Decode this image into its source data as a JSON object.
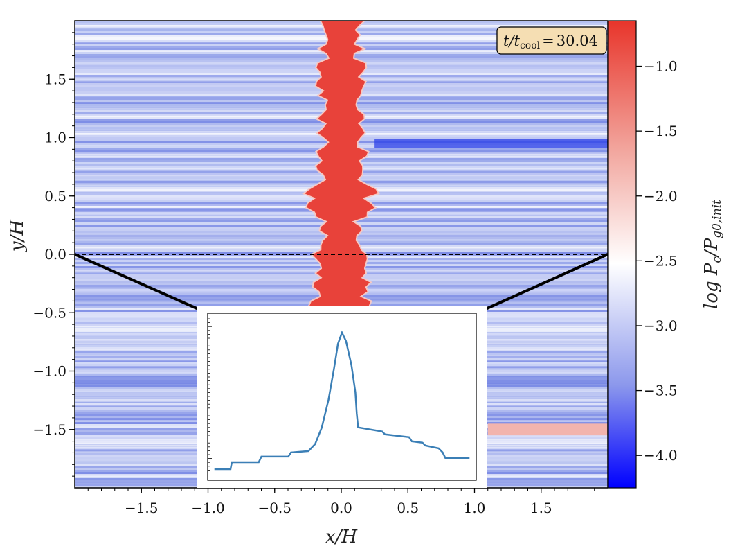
{
  "chart_data": {
    "type": "heatmap",
    "title": "",
    "xlabel": "x/H",
    "ylabel": "y/H",
    "xlim": [
      -2.0,
      2.0
    ],
    "ylim": [
      -2.0,
      2.0
    ],
    "x_ticks": [
      -1.5,
      -1.0,
      -0.5,
      0.0,
      0.5,
      1.0,
      1.5
    ],
    "x_tick_labels": [
      "−1.5",
      "−1.0",
      "−0.5",
      "0.0",
      "0.5",
      "1.0",
      "1.5"
    ],
    "y_ticks": [
      1.5,
      1.0,
      0.5,
      0.0,
      -0.5,
      -1.0,
      -1.5
    ],
    "y_tick_labels": [
      "1.5",
      "1.0",
      "0.5",
      "0.0",
      "−0.5",
      "−1.0",
      "−1.5"
    ],
    "time_annotation": {
      "var": "t/t",
      "sub": "cool",
      "eq": "=",
      "value": "30.04"
    },
    "colorbar": {
      "label": "log P",
      "label_sub": "c",
      "label_div": "/P",
      "label_sub2": "g0,init",
      "range": [
        -4.25,
        -0.65
      ],
      "ticks": [
        -1.0,
        -1.5,
        -2.0,
        -2.5,
        -3.0,
        -3.5,
        -4.0
      ],
      "tick_labels": [
        "−1.0",
        "−1.5",
        "−2.0",
        "−2.5",
        "−3.0",
        "−3.5",
        "−4.0"
      ],
      "colors": [
        "#0000ff",
        "#ffffff",
        "#e8352b"
      ]
    },
    "cut_line": {
      "y": 0.0,
      "style": "dashed"
    },
    "features": {
      "central_filament_x": 0.0,
      "filament_halfwidth": 0.15,
      "filament_level": -0.8,
      "background_level": -3.1,
      "dark_band_y": 0.95,
      "dark_band_x_range": [
        0.25,
        2.0
      ],
      "light_band_y": -1.5,
      "light_band_x_range": [
        1.1,
        2.0
      ]
    },
    "inset": {
      "type": "line",
      "xlim": [
        -1.0,
        1.0
      ],
      "x": [
        -0.95,
        -0.83,
        -0.82,
        -0.62,
        -0.6,
        -0.4,
        -0.38,
        -0.25,
        -0.2,
        -0.15,
        -0.1,
        -0.06,
        -0.03,
        0.0,
        0.03,
        0.07,
        0.1,
        0.11,
        0.12,
        0.3,
        0.32,
        0.5,
        0.52,
        0.6,
        0.62,
        0.72,
        0.75,
        0.77,
        0.95
      ],
      "y": [
        0.0,
        0.0,
        0.05,
        0.05,
        0.09,
        0.09,
        0.12,
        0.13,
        0.18,
        0.3,
        0.5,
        0.72,
        0.9,
        0.98,
        0.92,
        0.75,
        0.55,
        0.4,
        0.3,
        0.27,
        0.25,
        0.23,
        0.2,
        0.19,
        0.17,
        0.15,
        0.12,
        0.08,
        0.08
      ],
      "color": "#3b7fb6"
    }
  }
}
